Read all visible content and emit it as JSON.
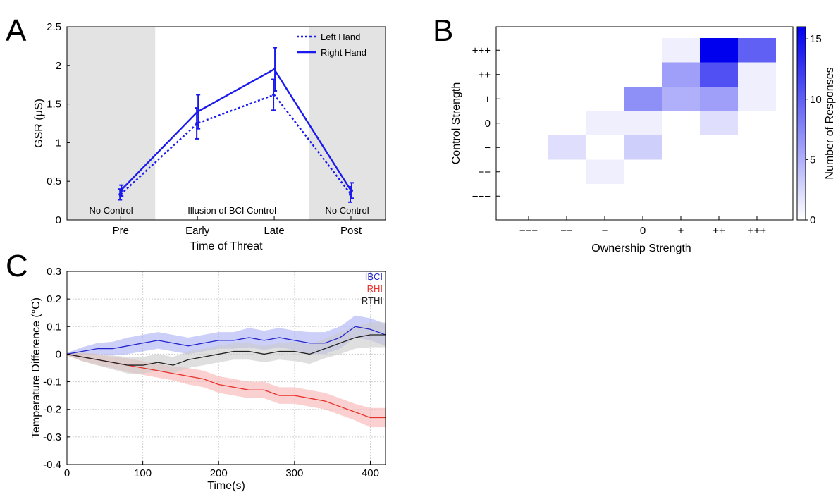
{
  "panels": {
    "A": {
      "letter": "A"
    },
    "B": {
      "letter": "B"
    },
    "C": {
      "letter": "C"
    }
  },
  "chart_data": [
    {
      "panel": "A",
      "type": "line",
      "title": "",
      "xlabel": "Time of Threat",
      "ylabel": "GSR (μS)",
      "categories": [
        "Pre",
        "Early",
        "Late",
        "Post"
      ],
      "ylim": [
        0,
        2.5
      ],
      "yticks": [
        0,
        0.5,
        1,
        1.5,
        2,
        2.5
      ],
      "ytick_labels": [
        "0",
        "0.5",
        "1",
        "1.5",
        "2",
        "2.5"
      ],
      "series": [
        {
          "name": "Left Hand",
          "style": "dotted",
          "color": "#1a1aee",
          "values": [
            0.33,
            1.25,
            1.62,
            0.33
          ],
          "err": [
            0.07,
            0.2,
            0.2,
            0.1
          ]
        },
        {
          "name": "Right Hand",
          "style": "solid",
          "color": "#1a1aee",
          "values": [
            0.38,
            1.4,
            1.95,
            0.38
          ],
          "err": [
            0.07,
            0.22,
            0.28,
            0.1
          ]
        }
      ],
      "regions": [
        {
          "label": "No Control",
          "shaded": true,
          "x_from": 0.3,
          "x_to": 1.45
        },
        {
          "label": "Illusion of BCI Control",
          "shaded": false,
          "x_from": 1.45,
          "x_to": 3.45
        },
        {
          "label": "No Control",
          "shaded": true,
          "x_from": 3.45,
          "x_to": 4.45
        }
      ],
      "legend_position": "top-right",
      "grid": false
    },
    {
      "panel": "B",
      "type": "heatmap",
      "title": "",
      "xlabel": "Ownership Strength",
      "ylabel": "Control Strength",
      "x_categories": [
        "−−−",
        "−−",
        "−",
        "0",
        "+",
        "++",
        "+++"
      ],
      "y_categories": [
        "+++",
        "++",
        "+",
        "0",
        "−",
        "−−",
        "−−−"
      ],
      "cells": [
        {
          "x": "+",
          "y": "+++",
          "value": 1
        },
        {
          "x": "++",
          "y": "+++",
          "value": 16
        },
        {
          "x": "+++",
          "y": "+++",
          "value": 10
        },
        {
          "x": "+",
          "y": "++",
          "value": 6
        },
        {
          "x": "++",
          "y": "++",
          "value": 11
        },
        {
          "x": "+++",
          "y": "++",
          "value": 1
        },
        {
          "x": "0",
          "y": "+",
          "value": 7
        },
        {
          "x": "+",
          "y": "+",
          "value": 5
        },
        {
          "x": "++",
          "y": "+",
          "value": 6
        },
        {
          "x": "+++",
          "y": "+",
          "value": 1
        },
        {
          "x": "−",
          "y": "0",
          "value": 1
        },
        {
          "x": "0",
          "y": "0",
          "value": 1
        },
        {
          "x": "++",
          "y": "0",
          "value": 2
        },
        {
          "x": "−−",
          "y": "−",
          "value": 2
        },
        {
          "x": "0",
          "y": "−",
          "value": 3
        },
        {
          "x": "−",
          "y": "−−",
          "value": 1
        }
      ],
      "colorbar": {
        "label": "Number of Responses",
        "range": [
          0,
          16
        ],
        "ticks": [
          0,
          5,
          10,
          15
        ],
        "color_low": "#ffffff",
        "color_high": "#0000ee"
      }
    },
    {
      "panel": "C",
      "type": "line",
      "title": "",
      "xlabel": "Time(s)",
      "ylabel": "Temperature Difference (°C)",
      "xlim": [
        0,
        420
      ],
      "ylim": [
        -0.4,
        0.3
      ],
      "xticks": [
        0,
        100,
        200,
        300,
        400
      ],
      "yticks": [
        -0.4,
        -0.3,
        -0.2,
        -0.1,
        0,
        0.1,
        0.2,
        0.3
      ],
      "ytick_labels": [
        "-0.4",
        "-0.3",
        "-0.2",
        "-0.1",
        "0",
        "0.1",
        "0.2",
        "0.3"
      ],
      "grid": true,
      "legend_position": "top-right",
      "series": [
        {
          "name": "IBCI",
          "color": "#2525cc",
          "band_color": "#aab0f5",
          "x": [
            0,
            20,
            40,
            60,
            80,
            100,
            120,
            140,
            160,
            180,
            200,
            220,
            240,
            260,
            280,
            300,
            320,
            340,
            360,
            380,
            400,
            420
          ],
          "y": [
            0.0,
            0.01,
            0.02,
            0.02,
            0.03,
            0.04,
            0.05,
            0.04,
            0.03,
            0.04,
            0.05,
            0.05,
            0.06,
            0.05,
            0.06,
            0.05,
            0.04,
            0.04,
            0.06,
            0.1,
            0.09,
            0.07
          ],
          "band": [
            0.005,
            0.015,
            0.02,
            0.025,
            0.03,
            0.03,
            0.03,
            0.03,
            0.03,
            0.03,
            0.03,
            0.03,
            0.035,
            0.035,
            0.035,
            0.035,
            0.04,
            0.04,
            0.04,
            0.04,
            0.04,
            0.04
          ]
        },
        {
          "name": "RHI",
          "color": "#e8302a",
          "band_color": "#f7b3b0",
          "x": [
            0,
            20,
            40,
            60,
            80,
            100,
            120,
            140,
            160,
            180,
            200,
            220,
            240,
            260,
            280,
            300,
            320,
            340,
            360,
            380,
            400,
            420
          ],
          "y": [
            0.0,
            -0.01,
            -0.02,
            -0.03,
            -0.04,
            -0.05,
            -0.06,
            -0.07,
            -0.08,
            -0.09,
            -0.11,
            -0.12,
            -0.13,
            -0.13,
            -0.15,
            -0.15,
            -0.16,
            -0.17,
            -0.19,
            -0.21,
            -0.23,
            -0.23
          ],
          "band": [
            0.005,
            0.015,
            0.02,
            0.02,
            0.025,
            0.025,
            0.025,
            0.025,
            0.03,
            0.03,
            0.03,
            0.03,
            0.03,
            0.03,
            0.03,
            0.03,
            0.03,
            0.03,
            0.03,
            0.03,
            0.035,
            0.035
          ]
        },
        {
          "name": "RTHI",
          "color": "#222222",
          "band_color": "#c9c9c9",
          "x": [
            0,
            20,
            40,
            60,
            80,
            100,
            120,
            140,
            160,
            180,
            200,
            220,
            240,
            260,
            280,
            300,
            320,
            340,
            360,
            380,
            400,
            420
          ],
          "y": [
            0.0,
            -0.01,
            -0.02,
            -0.03,
            -0.04,
            -0.04,
            -0.03,
            -0.04,
            -0.02,
            -0.01,
            0.0,
            0.01,
            0.01,
            0.0,
            0.01,
            0.01,
            0.0,
            0.02,
            0.04,
            0.06,
            0.07,
            0.07
          ],
          "band": [
            0.005,
            0.015,
            0.02,
            0.025,
            0.03,
            0.03,
            0.03,
            0.03,
            0.03,
            0.03,
            0.03,
            0.03,
            0.03,
            0.03,
            0.03,
            0.035,
            0.035,
            0.035,
            0.04,
            0.04,
            0.045,
            0.045
          ]
        }
      ]
    }
  ]
}
